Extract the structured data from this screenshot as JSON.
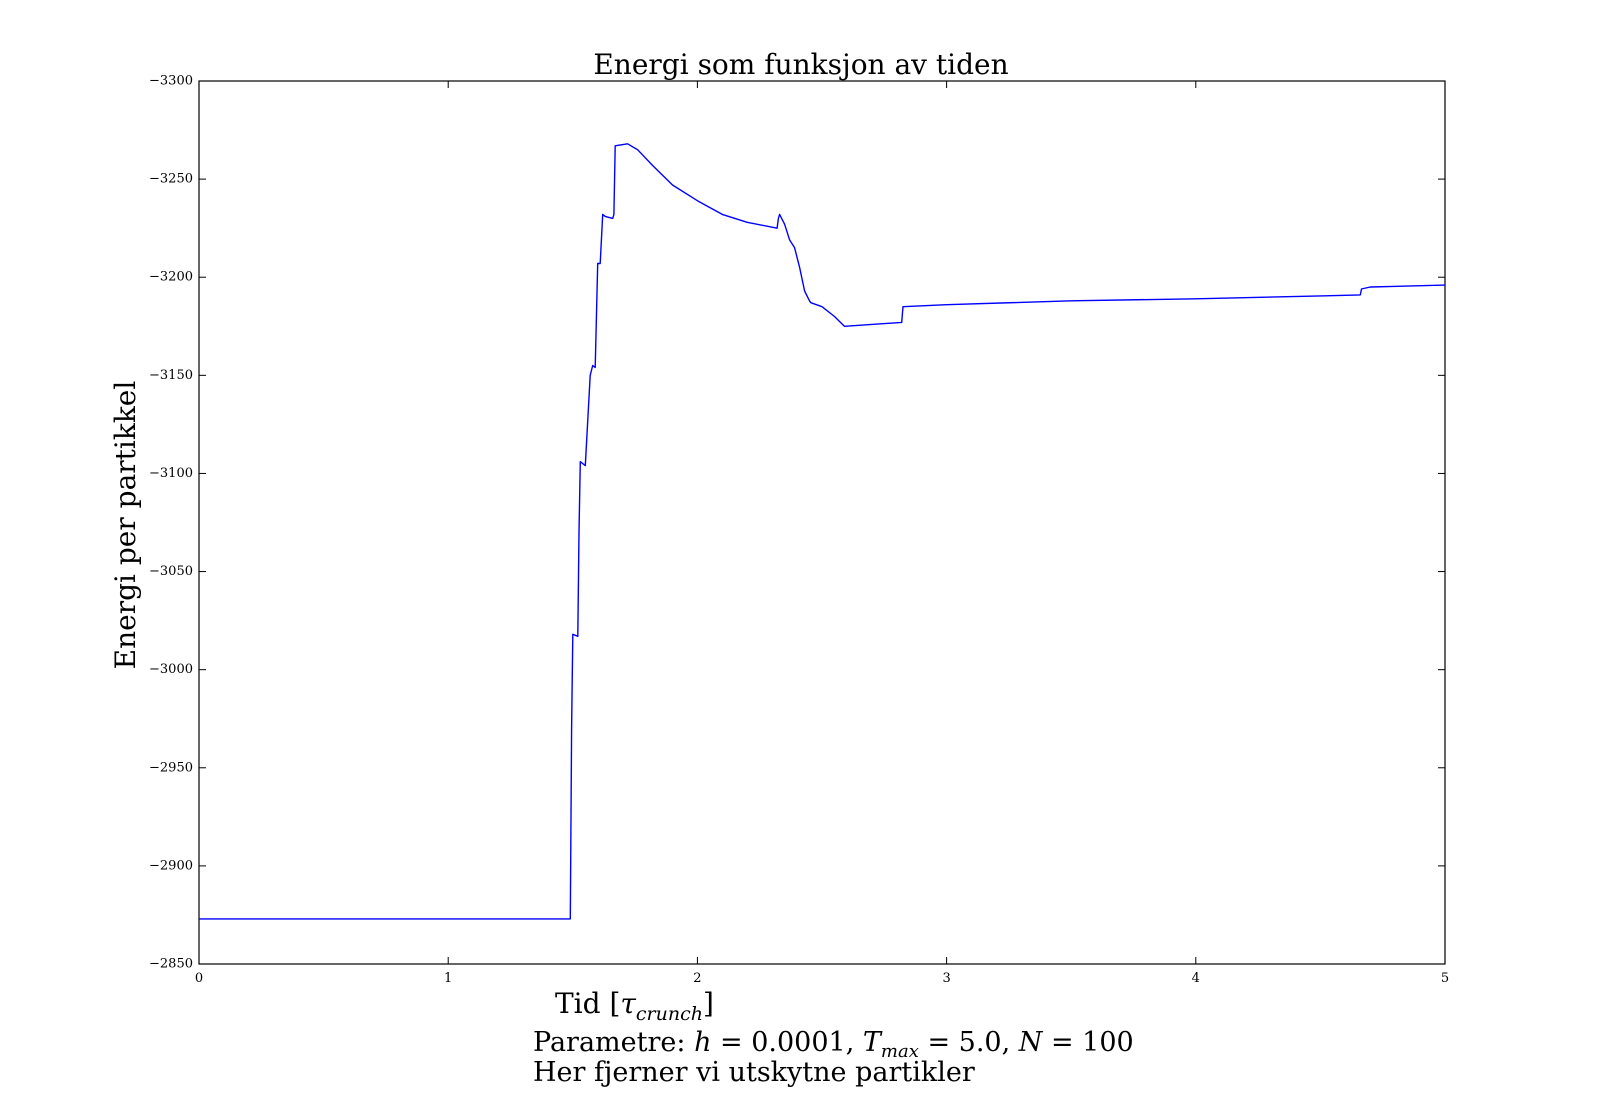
{
  "chart_data": {
    "type": "line",
    "title": "Energi som funksjon av tiden",
    "ylabel": "Energi per partikkel",
    "xlabel": {
      "text": "Tid ",
      "open": "[",
      "symbol": "τ",
      "subscript": "crunch",
      "close": "]"
    },
    "xlim": [
      0,
      5
    ],
    "ylim": [
      -3300,
      -2850
    ],
    "x_ticks": [
      0,
      1,
      2,
      3,
      4,
      5
    ],
    "x_tick_labels": [
      "0",
      "1",
      "2",
      "3",
      "4",
      "5"
    ],
    "y_ticks": [
      -2850,
      -2900,
      -2950,
      -3000,
      -3050,
      -3100,
      -3150,
      -3200,
      -3250,
      -3300
    ],
    "y_tick_labels": [
      "−2850",
      "−2900",
      "−2950",
      "−3000",
      "−3050",
      "−3100",
      "−3150",
      "−3200",
      "−3250",
      "−3300"
    ],
    "grid": false,
    "legend": "none",
    "series": [
      {
        "color": "#0000ff",
        "x": [
          0,
          0.3,
          0.6,
          0.9,
          1.2,
          1.49,
          1.495,
          1.5,
          1.52,
          1.525,
          1.53,
          1.55,
          1.57,
          1.58,
          1.59,
          1.6,
          1.61,
          1.62,
          1.63,
          1.66,
          1.665,
          1.67,
          1.72,
          1.76,
          1.82,
          1.9,
          2.0,
          2.1,
          2.2,
          2.32,
          2.325,
          2.33,
          2.35,
          2.37,
          2.39,
          2.41,
          2.43,
          2.45,
          2.455,
          2.5,
          2.55,
          2.59,
          2.82,
          2.825,
          3.0,
          3.5,
          4.0,
          4.5,
          4.66,
          4.665,
          4.7,
          5.0
        ],
        "y": [
          -2873,
          -2873,
          -2873,
          -2873,
          -2873,
          -2873,
          -2970,
          -3018,
          -3017,
          -3070,
          -3106,
          -3104,
          -3150,
          -3155,
          -3154,
          -3207,
          -3207,
          -3232,
          -3231,
          -3230,
          -3232,
          -3267,
          -3268,
          -3265,
          -3257,
          -3247,
          -3239,
          -3232,
          -3228,
          -3225,
          -3230,
          -3232,
          -3227,
          -3219,
          -3215,
          -3205,
          -3193,
          -3188,
          -3187,
          -3185,
          -3180,
          -3175,
          -3177,
          -3185,
          -3186,
          -3188,
          -3189,
          -3190.5,
          -3191,
          -3194,
          -3195,
          -3196
        ]
      }
    ]
  },
  "caption": {
    "line1_prefix": "Parametre: ",
    "h_var": "h",
    "h_eq": " = 0.0001, ",
    "t_var": "T",
    "t_sub": "max",
    "t_eq": " = 5.0, ",
    "n_var": "N",
    "n_eq": " = 100",
    "line2": "Her fjerner vi utskytne partikler"
  }
}
